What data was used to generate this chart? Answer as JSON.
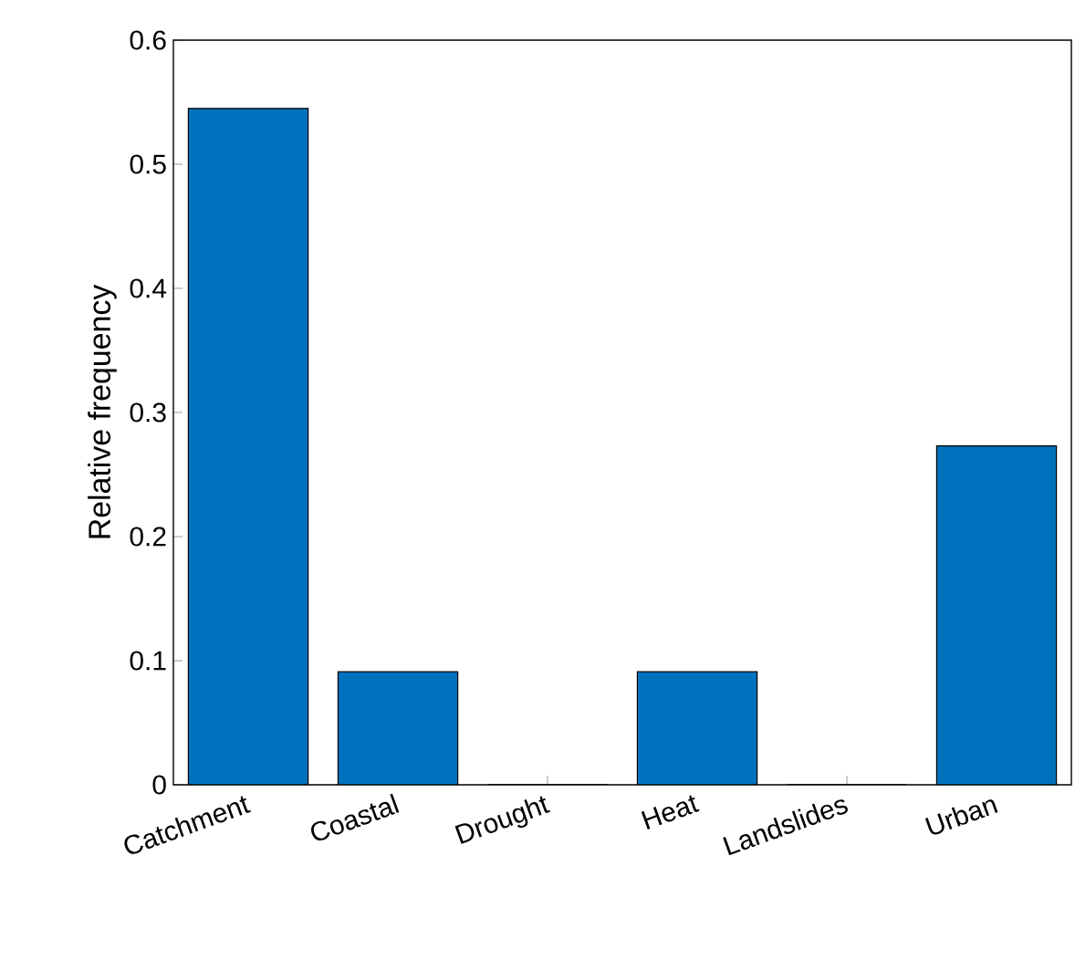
{
  "chart_data": {
    "type": "bar",
    "ylabel": "Relative frequency",
    "categories": [
      "Catchment",
      "Coastal",
      "Drought",
      "Heat",
      "Landslides",
      "Urban"
    ],
    "values": [
      0.545,
      0.091,
      0,
      0.091,
      0,
      0.273
    ],
    "color": "#0072bd",
    "ylim": [
      0,
      0.6
    ],
    "yticks": [
      0,
      0.1,
      0.2,
      0.3,
      0.4,
      0.5,
      0.6
    ],
    "grid": false
  }
}
